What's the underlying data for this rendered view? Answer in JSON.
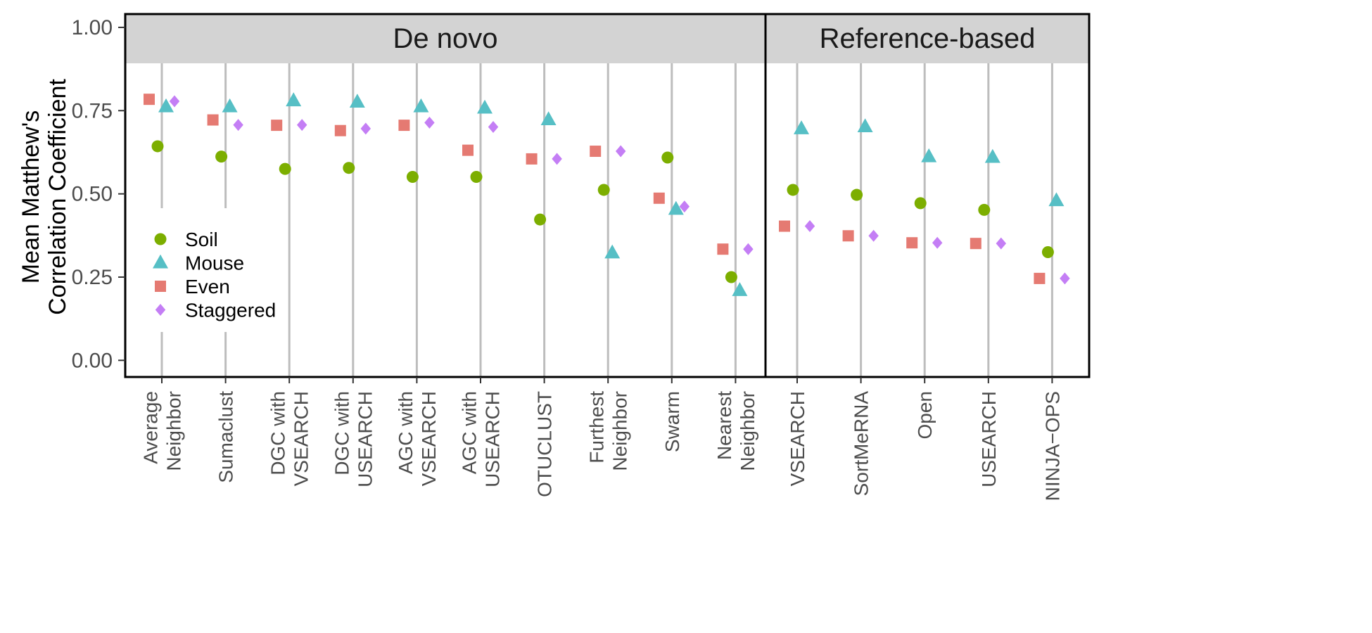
{
  "chart_data": {
    "type": "scatter",
    "title": "",
    "xlabel": "",
    "ylabel": [
      "Mean Matthew's",
      "Correlation Coefficient"
    ],
    "ylim": [
      -0.05,
      1.04
    ],
    "yticks": [
      "0.00",
      "0.25",
      "0.50",
      "0.75",
      "1.00"
    ],
    "ytick_values": [
      0,
      0.25,
      0.5,
      0.75,
      1.0
    ],
    "grid": "vertical-lines-per-category",
    "legend_position": "inside-left",
    "series": [
      {
        "name": "Soil",
        "color": "#7CAE00",
        "marker": "circle"
      },
      {
        "name": "Mouse",
        "color": "#56BFC5",
        "marker": "triangle"
      },
      {
        "name": "Even",
        "color": "#E57A72",
        "marker": "square"
      },
      {
        "name": "Staggered",
        "color": "#C47EF5",
        "marker": "diamond"
      }
    ],
    "facets": [
      {
        "label": "De novo",
        "categories": [
          {
            "label": [
              "Average",
              "Neighbor"
            ],
            "values": {
              "Soil": 0.643,
              "Mouse": 0.762,
              "Even": 0.784,
              "Staggered": 0.778
            }
          },
          {
            "label": [
              "Sumaclust"
            ],
            "values": {
              "Soil": 0.612,
              "Mouse": 0.762,
              "Even": 0.722,
              "Staggered": 0.707
            }
          },
          {
            "label": [
              "DGC with",
              "VSEARCH"
            ],
            "values": {
              "Soil": 0.575,
              "Mouse": 0.78,
              "Even": 0.706,
              "Staggered": 0.707
            }
          },
          {
            "label": [
              "DGC with",
              "USEARCH"
            ],
            "values": {
              "Soil": 0.578,
              "Mouse": 0.776,
              "Even": 0.69,
              "Staggered": 0.696
            }
          },
          {
            "label": [
              "AGC with",
              "VSEARCH"
            ],
            "values": {
              "Soil": 0.551,
              "Mouse": 0.762,
              "Even": 0.706,
              "Staggered": 0.714
            }
          },
          {
            "label": [
              "AGC with",
              "USEARCH"
            ],
            "values": {
              "Soil": 0.551,
              "Mouse": 0.758,
              "Even": 0.631,
              "Staggered": 0.701
            }
          },
          {
            "label": [
              "OTUCLUST"
            ],
            "values": {
              "Soil": 0.423,
              "Mouse": 0.723,
              "Even": 0.605,
              "Staggered": 0.605
            }
          },
          {
            "label": [
              "Furthest",
              "Neighbor"
            ],
            "values": {
              "Soil": 0.512,
              "Mouse": 0.323,
              "Even": 0.628,
              "Staggered": 0.628
            }
          },
          {
            "label": [
              "Swarm"
            ],
            "values": {
              "Soil": 0.609,
              "Mouse": 0.454,
              "Even": 0.487,
              "Staggered": 0.462
            }
          },
          {
            "label": [
              "Nearest",
              "Neighbor"
            ],
            "values": {
              "Soil": 0.25,
              "Mouse": 0.21,
              "Even": 0.334,
              "Staggered": 0.334
            }
          }
        ]
      },
      {
        "label": "Reference-based",
        "categories": [
          {
            "label": [
              "VSEARCH"
            ],
            "values": {
              "Soil": 0.512,
              "Mouse": 0.696,
              "Even": 0.403,
              "Staggered": 0.403
            }
          },
          {
            "label": [
              "SortMeRNA"
            ],
            "values": {
              "Soil": 0.497,
              "Mouse": 0.702,
              "Even": 0.374,
              "Staggered": 0.374
            }
          },
          {
            "label": [
              "Open"
            ],
            "values": {
              "Soil": 0.472,
              "Mouse": 0.612,
              "Even": 0.353,
              "Staggered": 0.353
            }
          },
          {
            "label": [
              "USEARCH"
            ],
            "values": {
              "Soil": 0.452,
              "Mouse": 0.61,
              "Even": 0.351,
              "Staggered": 0.351
            }
          },
          {
            "label": [
              "NINJA−OPS"
            ],
            "values": {
              "Soil": 0.325,
              "Mouse": 0.48,
              "Even": 0.246,
              "Staggered": 0.246
            }
          }
        ]
      }
    ]
  }
}
